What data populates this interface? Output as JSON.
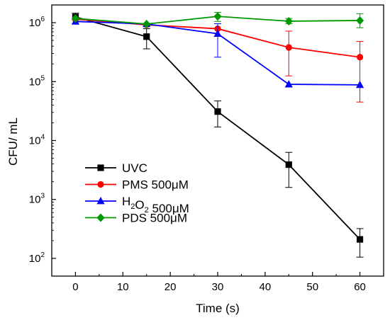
{
  "chart_data": {
    "type": "line",
    "xlabel": "Time (s)",
    "ylabel": "CFU/ mL",
    "xlim": [
      -5,
      65
    ],
    "ylim": [
      50,
      2000000
    ],
    "yscale": "log",
    "x_ticks": [
      0,
      10,
      20,
      30,
      40,
      50,
      60
    ],
    "x_tick_labels": [
      "0",
      "10",
      "20",
      "30",
      "40",
      "50",
      "60"
    ],
    "y_ticks": [
      100,
      1000,
      10000,
      100000,
      1000000
    ],
    "y_tick_labels": [
      {
        "base": "10",
        "exp": "2"
      },
      {
        "base": "10",
        "exp": "3"
      },
      {
        "base": "10",
        "exp": "4"
      },
      {
        "base": "10",
        "exp": "5"
      },
      {
        "base": "10",
        "exp": "6"
      }
    ],
    "grid": false,
    "legend_position": "bottom-left",
    "series": [
      {
        "name": "UVC",
        "legend_parts": [
          {
            "text": "UVC",
            "sub": false
          }
        ],
        "color": "#000000",
        "marker": "square",
        "x": [
          0,
          15,
          30,
          45,
          60
        ],
        "y": [
          1250000,
          580000,
          31000,
          3900,
          210
        ],
        "err_low": [
          1120000,
          360000,
          17000,
          1600,
          105
        ],
        "err_high": [
          1450000,
          790000,
          47000,
          6300,
          320
        ]
      },
      {
        "name": "PMS 500μM",
        "legend_parts": [
          {
            "text": "PMS 500μM",
            "sub": false
          }
        ],
        "color": "#ff0000",
        "marker": "circle",
        "x": [
          0,
          15,
          30,
          45,
          60
        ],
        "y": [
          1150000,
          920000,
          790000,
          380000,
          260000
        ],
        "err_low": [
          1150000,
          920000,
          790000,
          125000,
          45000
        ],
        "err_high": [
          1150000,
          920000,
          790000,
          720000,
          480000
        ]
      },
      {
        "name": "H2O2 500μM",
        "legend_parts": [
          {
            "text": "H",
            "sub": false
          },
          {
            "text": "2",
            "sub": true
          },
          {
            "text": "O",
            "sub": false
          },
          {
            "text": "2",
            "sub": true
          },
          {
            "text": " 500μM",
            "sub": false
          }
        ],
        "color": "#0000ff",
        "marker": "triangle",
        "x": [
          0,
          15,
          30,
          45,
          60
        ],
        "y": [
          1050000,
          950000,
          650000,
          90000,
          88000
        ],
        "err_low": [
          1050000,
          950000,
          260000,
          90000,
          88000
        ],
        "err_high": [
          1050000,
          950000,
          960000,
          90000,
          88000
        ]
      },
      {
        "name": "PDS 500μM",
        "legend_parts": [
          {
            "text": "PDS 500μM",
            "sub": false
          }
        ],
        "color": "#009900",
        "marker": "diamond",
        "x": [
          0,
          15,
          30,
          45,
          60
        ],
        "y": [
          1180000,
          950000,
          1280000,
          1060000,
          1090000
        ],
        "err_low": [
          1180000,
          950000,
          1050000,
          960000,
          820000
        ],
        "err_high": [
          1180000,
          950000,
          1500000,
          1180000,
          1420000
        ]
      }
    ]
  }
}
